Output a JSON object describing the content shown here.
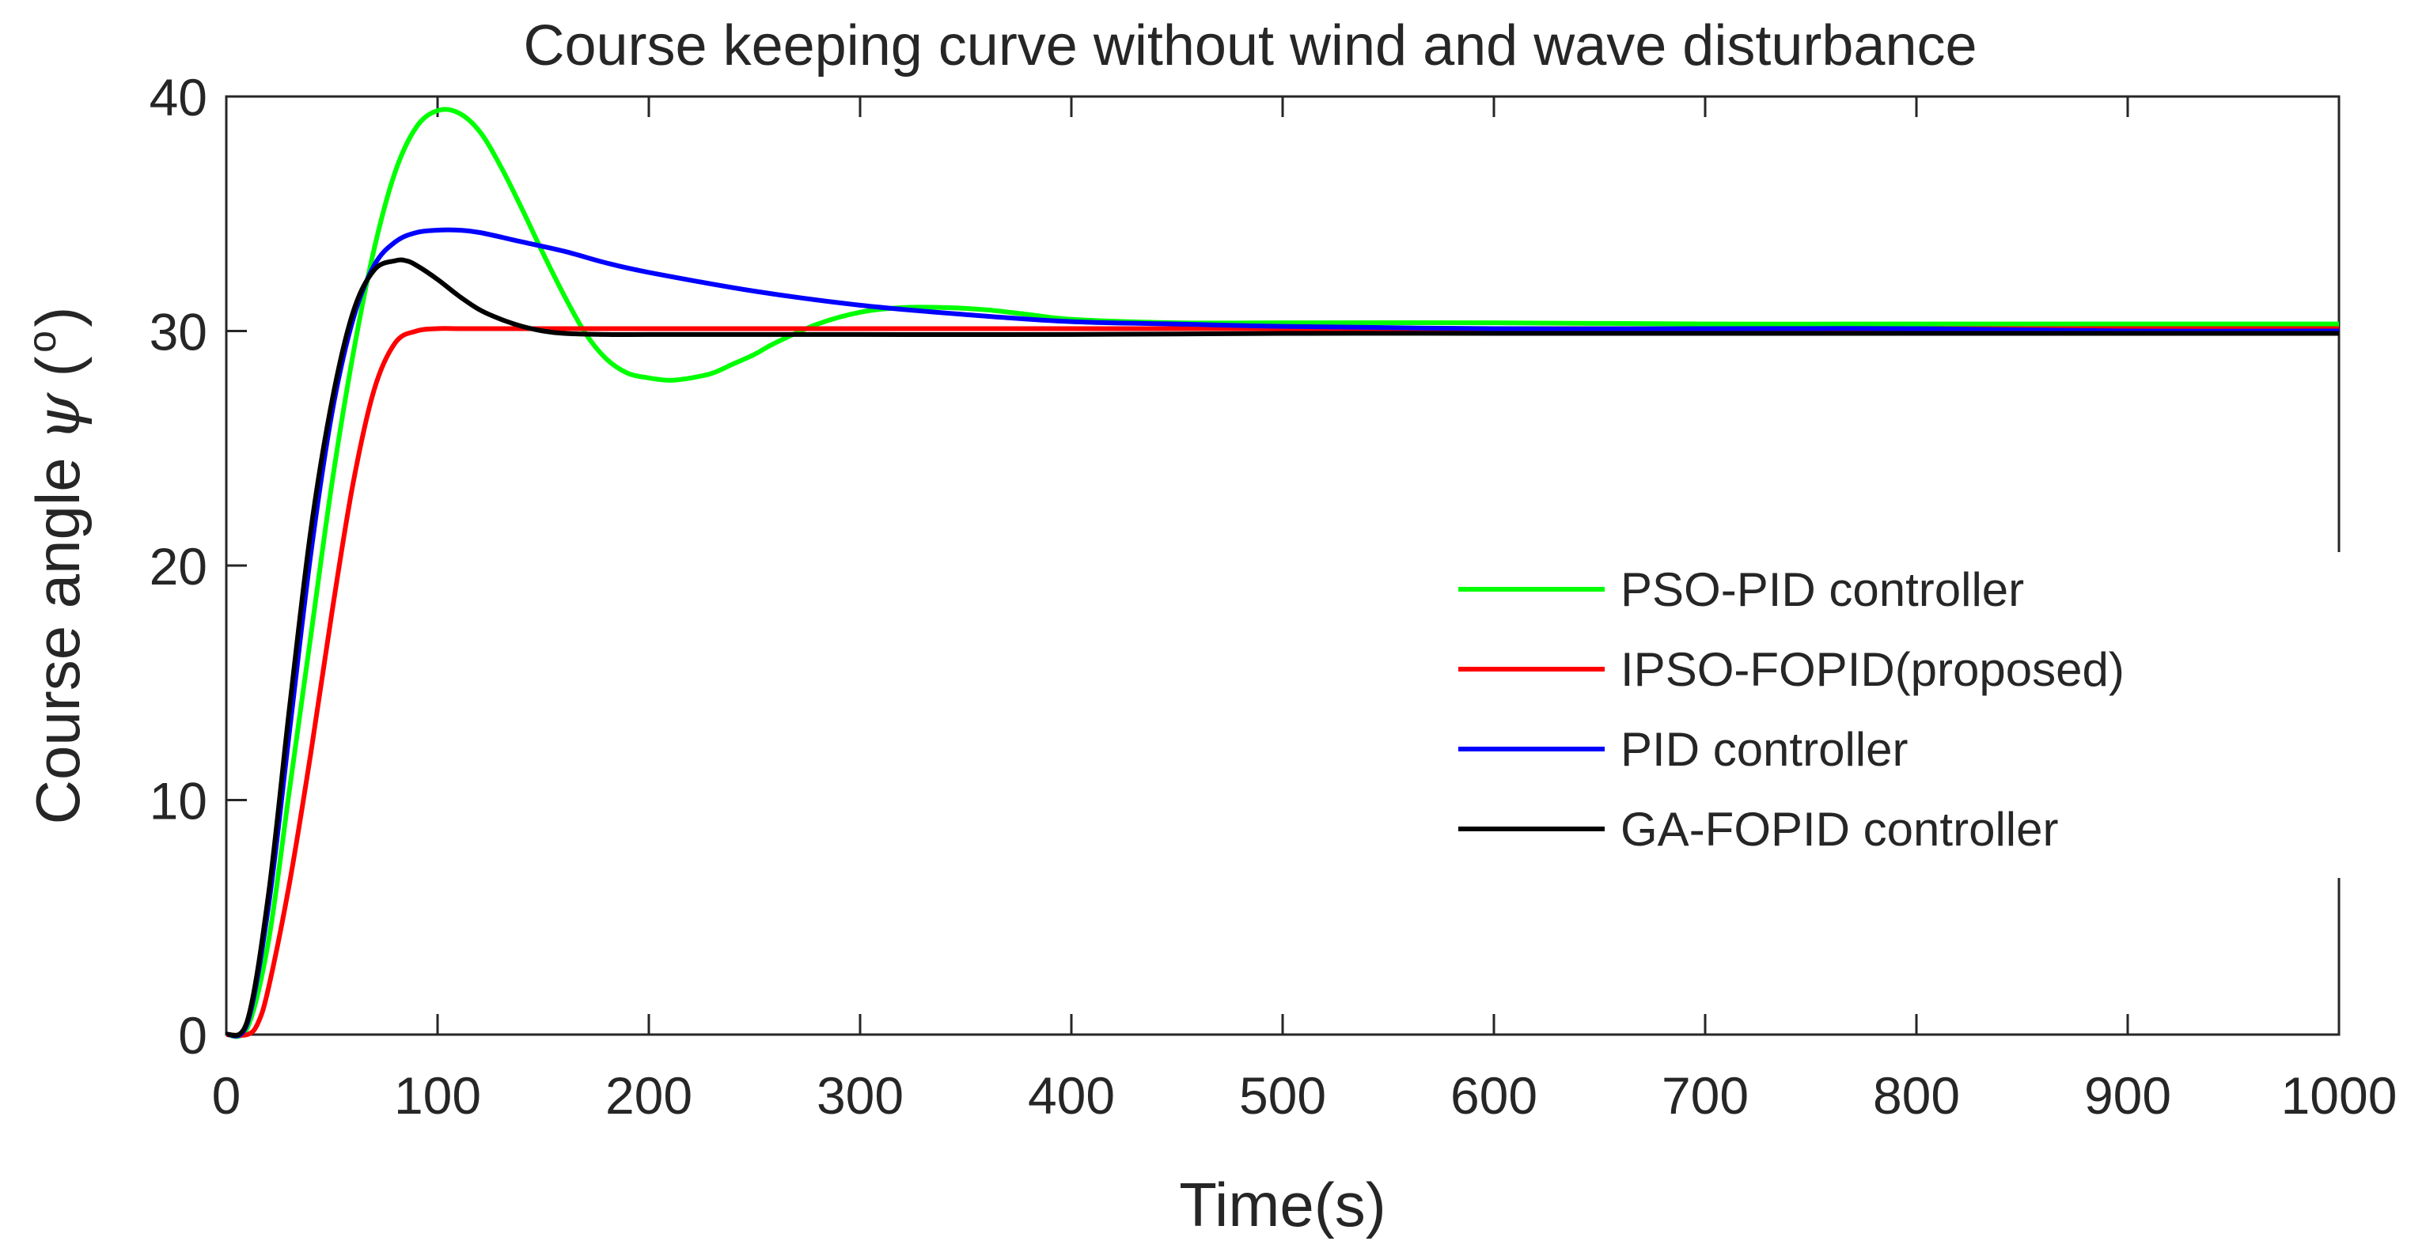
{
  "chart_data": {
    "type": "line",
    "title": "Course keeping curve without wind and wave disturbance",
    "xlabel": "Time(s)",
    "ylabel": "Course angle ψ (°)",
    "ylabel_text": "Course angle",
    "ylabel_symbol": "ψ",
    "ylabel_unit_open": "(",
    "ylabel_unit": "o",
    "ylabel_unit_close": ")",
    "xlim": [
      0,
      1000
    ],
    "ylim": [
      0,
      40
    ],
    "xticks": [
      0,
      100,
      200,
      300,
      400,
      500,
      600,
      700,
      800,
      900,
      1000
    ],
    "xtick_labels": [
      "0",
      "100",
      "200",
      "300",
      "400",
      "500",
      "600",
      "700",
      "800",
      "900",
      "1000"
    ],
    "yticks": [
      0,
      10,
      20,
      30,
      40
    ],
    "ytick_labels": [
      "0",
      "10",
      "20",
      "30",
      "40"
    ],
    "grid": false,
    "legend_position": "right",
    "series": [
      {
        "name": "PSO-PID controller",
        "color": "#00ff00",
        "x": [
          0,
          10,
          20,
          30,
          40,
          50,
          60,
          70,
          80,
          90,
          100,
          110,
          120,
          130,
          140,
          150,
          160,
          170,
          180,
          190,
          200,
          210,
          220,
          230,
          240,
          250,
          260,
          280,
          300,
          320,
          340,
          360,
          380,
          400,
          450,
          500,
          600,
          700,
          800,
          900,
          1000
        ],
        "y": [
          0,
          0.3,
          4.0,
          10.5,
          17.0,
          23.5,
          29.0,
          33.5,
          36.8,
          38.7,
          39.4,
          39.3,
          38.5,
          37.0,
          35.2,
          33.3,
          31.5,
          29.9,
          28.8,
          28.2,
          28.0,
          27.9,
          28.0,
          28.2,
          28.6,
          29.0,
          29.5,
          30.3,
          30.8,
          31.0,
          31.0,
          30.9,
          30.7,
          30.5,
          30.35,
          30.35,
          30.35,
          30.3,
          30.3,
          30.3,
          30.3
        ]
      },
      {
        "name": "IPSO-FOPID(proposed)",
        "color": "#ff0000",
        "x": [
          0,
          10,
          15,
          20,
          30,
          40,
          50,
          60,
          70,
          80,
          90,
          100,
          110,
          120,
          150,
          200,
          300,
          400,
          500,
          600,
          700,
          800,
          900,
          1000
        ],
        "y": [
          0,
          0,
          0.5,
          2.0,
          6.5,
          12.0,
          18.0,
          23.5,
          27.5,
          29.5,
          30.0,
          30.1,
          30.1,
          30.1,
          30.1,
          30.1,
          30.1,
          30.1,
          30.1,
          30.1,
          30.1,
          30.1,
          30.1,
          30.1
        ]
      },
      {
        "name": "PID controller",
        "color": "#0000ff",
        "x": [
          0,
          10,
          20,
          30,
          40,
          50,
          60,
          70,
          80,
          90,
          100,
          110,
          120,
          140,
          160,
          180,
          200,
          250,
          300,
          350,
          400,
          450,
          500,
          600,
          700,
          800,
          900,
          1000
        ],
        "y": [
          0,
          0.5,
          5.5,
          13.0,
          20.5,
          26.5,
          30.5,
          32.8,
          33.8,
          34.2,
          34.3,
          34.3,
          34.2,
          33.8,
          33.4,
          32.9,
          32.5,
          31.7,
          31.1,
          30.7,
          30.4,
          30.3,
          30.2,
          30.1,
          30.1,
          30.1,
          30.0,
          30.0
        ]
      },
      {
        "name": "GA-FOPID controller",
        "color": "#000000",
        "x": [
          0,
          10,
          20,
          30,
          40,
          50,
          60,
          70,
          80,
          85,
          90,
          100,
          110,
          120,
          130,
          140,
          150,
          160,
          180,
          200,
          250,
          300,
          400,
          500,
          600,
          700,
          800,
          900,
          1000
        ],
        "y": [
          0,
          0.6,
          6.0,
          14.0,
          21.5,
          27.0,
          30.8,
          32.6,
          33.0,
          33.0,
          32.8,
          32.2,
          31.5,
          30.9,
          30.5,
          30.2,
          30.0,
          29.9,
          29.85,
          29.85,
          29.85,
          29.85,
          29.85,
          29.9,
          29.9,
          29.9,
          29.9,
          29.9,
          29.9
        ]
      }
    ]
  }
}
